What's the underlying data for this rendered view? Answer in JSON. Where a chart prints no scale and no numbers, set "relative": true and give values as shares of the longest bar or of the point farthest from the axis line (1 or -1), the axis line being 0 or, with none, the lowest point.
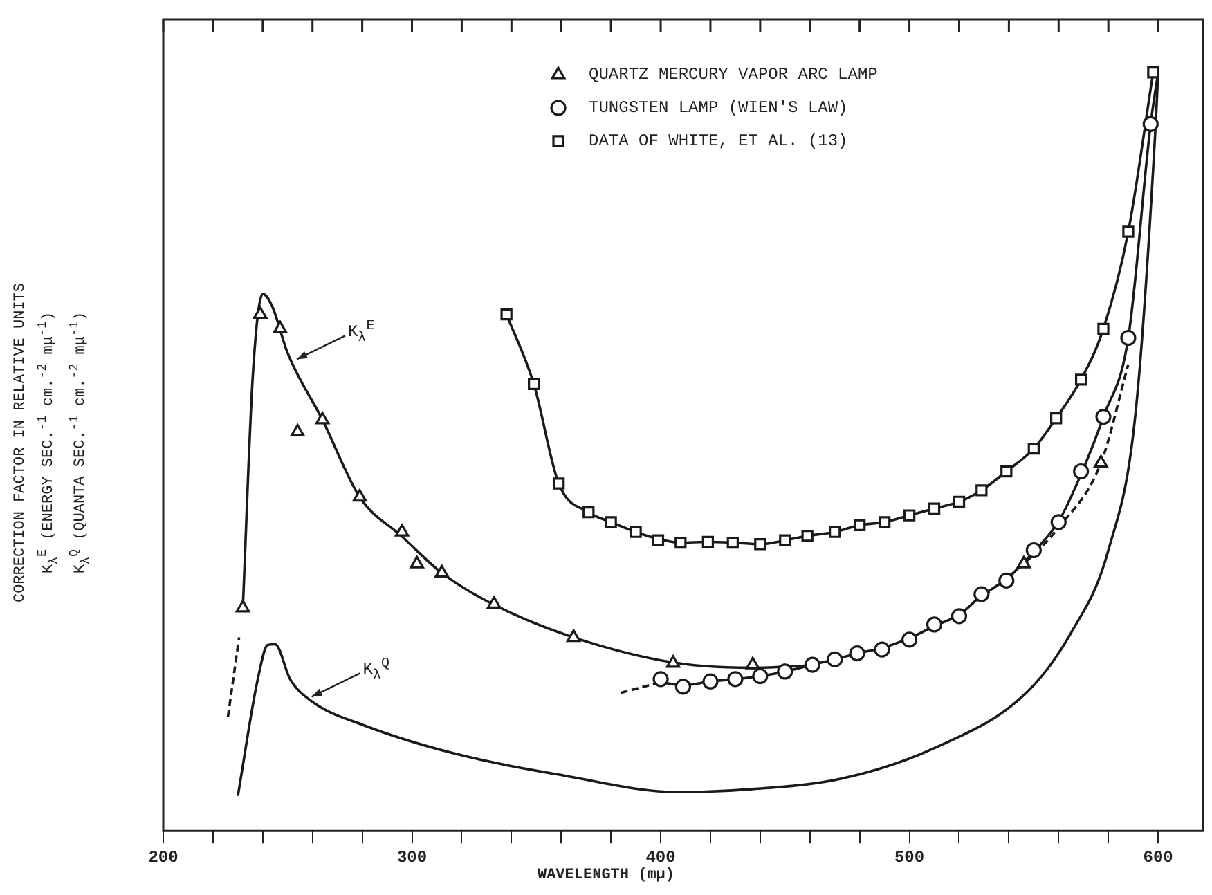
{
  "chart_data": {
    "type": "line",
    "relative": true,
    "xlabel": "WAVELENGTH (mμ)",
    "ylabel": "CORRECTION FACTOR IN RELATIVE UNITS\nK$_{λ}$$^{E}$ (ENERGY SEC.$^{-1}$ cm.$^{-2}$ mμ$^{-1}$)\nK$_{λ}$$^{Q}$ (QUANTA SEC.$^{-1}$ cm.$^{-2}$ mμ$^{-1}$)",
    "xlim": [
      200,
      618
    ],
    "xticks": [
      200,
      {
        "value": 220,
        "label": null
      },
      {
        "value": 240,
        "label": null
      },
      {
        "value": 260,
        "label": null
      },
      {
        "value": 280,
        "label": null
      },
      300,
      {
        "value": 320,
        "label": null
      },
      {
        "value": 340,
        "label": null
      },
      {
        "value": 360,
        "label": null
      },
      {
        "value": 380,
        "label": null
      },
      400,
      {
        "value": 420,
        "label": null
      },
      {
        "value": 440,
        "label": null
      },
      {
        "value": 460,
        "label": null
      },
      {
        "value": 480,
        "label": null
      },
      500,
      {
        "value": 520,
        "label": null
      },
      {
        "value": 540,
        "label": null
      },
      {
        "value": 560,
        "label": null
      },
      {
        "value": 580,
        "label": null
      },
      600
    ],
    "grid": false,
    "legend": "top",
    "annotations": [
      {
        "text": "K$_{λ}$$^{E}$",
        "x": 252,
        "y": 0.62
      },
      {
        "text": "K$_{λ}$$^{Q}$",
        "x": 258,
        "y": 0.175
      }
    ],
    "series": [
      {
        "type": "line",
        "marker": "none",
        "line_style": "dashed",
        "color": "#1a1a1a",
        "x": [
          226,
          230.5
        ],
        "values": [
          0.15,
          0.255
        ]
      },
      {
        "type": "line",
        "marker": "none",
        "line_style": "solid",
        "color": "#1a1a1a",
        "x": [
          232,
          236,
          240,
          244,
          250,
          264,
          279,
          296,
          312,
          333,
          365,
          405,
          437,
          460
        ],
        "values": [
          0.294,
          0.6,
          0.708,
          0.69,
          0.63,
          0.542,
          0.44,
          0.388,
          0.34,
          0.298,
          0.255,
          0.222,
          0.215,
          0.218
        ]
      },
      {
        "type": "line",
        "marker": "none",
        "line_style": "dashed",
        "color": "#1a1a1a",
        "x": [
          530,
          546,
          560,
          577,
          588
        ],
        "values": [
          0.31,
          0.352,
          0.4,
          0.485,
          0.615
        ]
      },
      {
        "type": "line",
        "marker": "none",
        "line_style": "dashed",
        "color": "#1a1a1a",
        "x": [
          384,
          400
        ],
        "values": [
          0.182,
          0.196
        ]
      },
      {
        "type": "line",
        "marker": "none",
        "line_style": "solid",
        "color": "#1a1a1a",
        "x": [
          400,
          409,
          420,
          430,
          440,
          450,
          461,
          470,
          479,
          489,
          500,
          510,
          520,
          529,
          539,
          550,
          560,
          569,
          578,
          588,
          597,
          600
        ],
        "values": [
          0.196,
          0.192,
          0.197,
          0.2,
          0.204,
          0.21,
          0.219,
          0.226,
          0.234,
          0.241,
          0.254,
          0.27,
          0.285,
          0.31,
          0.332,
          0.368,
          0.408,
          0.47,
          0.546,
          0.65,
          0.932,
          1.0
        ]
      },
      {
        "type": "line",
        "marker": "none",
        "line_style": "solid",
        "color": "#1a1a1a",
        "x": [
          338,
          349,
          359,
          371,
          380,
          390,
          399,
          408,
          419,
          429,
          440,
          450,
          459,
          470,
          480,
          490,
          500,
          510,
          520,
          529,
          539,
          550,
          559,
          569,
          578,
          588,
          598
        ],
        "values": [
          0.681,
          0.589,
          0.458,
          0.42,
          0.407,
          0.394,
          0.385,
          0.38,
          0.381,
          0.38,
          0.378,
          0.383,
          0.389,
          0.394,
          0.403,
          0.407,
          0.416,
          0.425,
          0.434,
          0.449,
          0.474,
          0.504,
          0.544,
          0.595,
          0.662,
          0.79,
          1.0
        ]
      },
      {
        "type": "line",
        "marker": "none",
        "line_style": "solid",
        "color": "#1a1a1a",
        "x": [
          230,
          238,
          242,
          245,
          251,
          260,
          280,
          317,
          361,
          407,
          437,
          473,
          510,
          547,
          565,
          580,
          591,
          599,
          600
        ],
        "values": [
          0.046,
          0.2,
          0.245,
          0.246,
          0.2,
          0.17,
          0.14,
          0.102,
          0.073,
          0.051,
          0.055,
          0.069,
          0.109,
          0.182,
          0.261,
          0.37,
          0.553,
          0.93,
          1.0
        ]
      },
      {
        "type": "scatter",
        "name": "QUARTZ MERCURY VAPOR ARC LAMP",
        "marker": "triangle",
        "color": "#1a1a1a",
        "x": [
          232,
          239,
          247,
          254,
          264,
          279,
          296,
          302,
          312,
          333,
          365,
          405,
          437,
          546,
          577
        ],
        "values": [
          0.294,
          0.681,
          0.662,
          0.526,
          0.542,
          0.44,
          0.394,
          0.352,
          0.34,
          0.299,
          0.255,
          0.221,
          0.219,
          0.352,
          0.485
        ]
      },
      {
        "type": "scatter",
        "name": "TUNGSTEN LAMP (WIEN'S LAW)",
        "marker": "circle",
        "color": "#1a1a1a",
        "x": [
          400,
          409,
          420,
          430,
          440,
          450,
          461,
          470,
          479,
          489,
          500,
          510,
          520,
          529,
          539,
          550,
          560,
          569,
          578,
          588,
          597
        ],
        "values": [
          0.2,
          0.19,
          0.197,
          0.2,
          0.204,
          0.21,
          0.219,
          0.226,
          0.234,
          0.239,
          0.252,
          0.272,
          0.283,
          0.312,
          0.33,
          0.37,
          0.407,
          0.474,
          0.546,
          0.65,
          0.932
        ]
      },
      {
        "type": "scatter",
        "name": "DATA OF WHITE, ET AL. (13)",
        "marker": "square",
        "color": "#1a1a1a",
        "x": [
          338,
          349,
          359,
          371,
          380,
          390,
          399,
          408,
          419,
          429,
          440,
          450,
          459,
          470,
          480,
          490,
          500,
          510,
          520,
          529,
          539,
          550,
          559,
          569,
          578,
          588,
          598
        ],
        "values": [
          0.681,
          0.589,
          0.458,
          0.42,
          0.407,
          0.394,
          0.383,
          0.38,
          0.381,
          0.38,
          0.378,
          0.383,
          0.389,
          0.394,
          0.403,
          0.407,
          0.416,
          0.425,
          0.434,
          0.449,
          0.474,
          0.504,
          0.544,
          0.595,
          0.662,
          0.79,
          1.0
        ]
      }
    ]
  }
}
